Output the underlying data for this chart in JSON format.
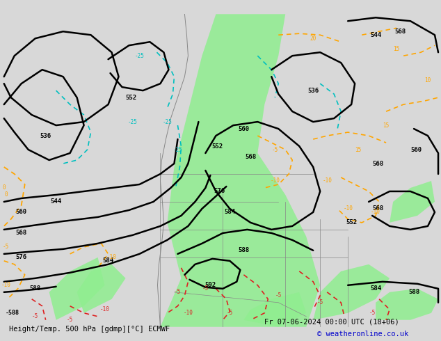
{
  "title_left": "Height/Temp. 500 hPa [gdmp][°C] ECMWF",
  "title_right": "Fr 07-06-2024 00:00 UTC (18+06)",
  "copyright": "© weatheronline.co.uk",
  "bg_color": "#d8d8d8",
  "map_bg": "#cccccc",
  "green_color": "#90ee90",
  "label_fontsize": 7,
  "title_fontsize": 7.5,
  "copyright_color": "#0000cc"
}
